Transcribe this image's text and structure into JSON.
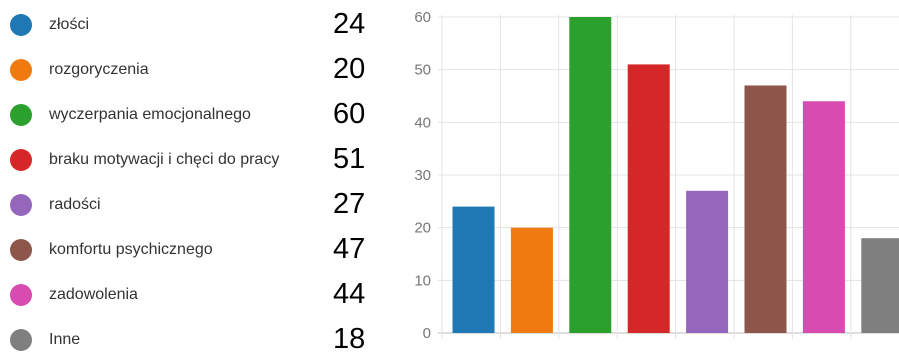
{
  "chart_data": {
    "type": "bar",
    "categories": [
      "złości",
      "rozgoryczenia",
      "wyczerpania emocjonalnego",
      "braku motywacji i chęci do pracy",
      " radości",
      "komfortu psychicznego",
      "zadowolenia",
      "Inne"
    ],
    "values": [
      24,
      20,
      60,
      51,
      27,
      47,
      44,
      18
    ],
    "colors": [
      "#1f77b4",
      "#ef7a10",
      "#2ca02c",
      "#d62728",
      "#9467bd",
      "#8c564b",
      "#d84bb0",
      "#7f7f7f"
    ],
    "title": "",
    "xlabel": "",
    "ylabel": "",
    "ylim": [
      0,
      60
    ],
    "yticks": [
      0,
      10,
      20,
      30,
      40,
      50,
      60
    ],
    "grid": true,
    "legend": "left"
  }
}
